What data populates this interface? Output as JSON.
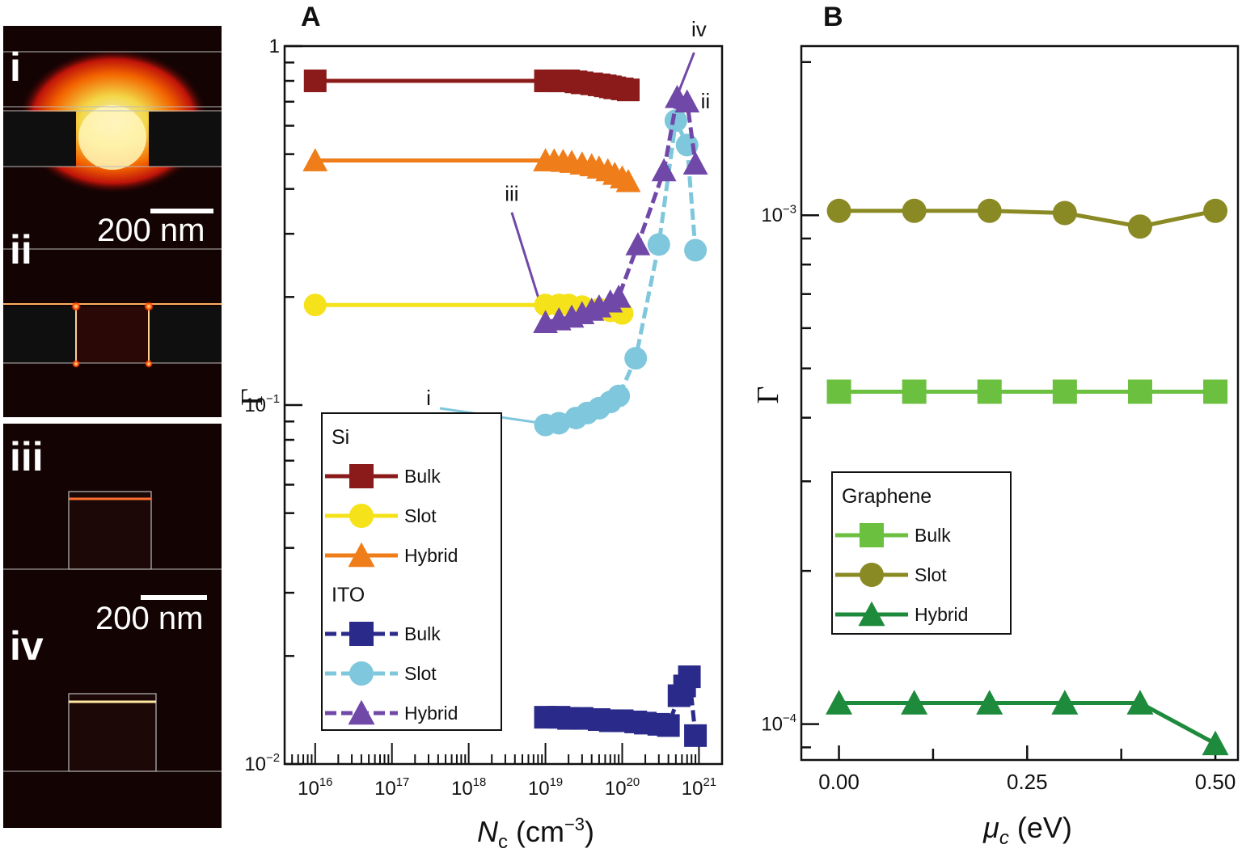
{
  "figure": {
    "panel_images": [
      {
        "label": "i",
        "scale_bar": "200 nm"
      },
      {
        "label": "ii"
      },
      {
        "label": "iii"
      },
      {
        "label": "iv",
        "scale_bar": "200 nm"
      }
    ],
    "colors": {
      "si_bulk": "#8b1a1a",
      "si_slot": "#f5e21a",
      "si_hybrid": "#ef7d1a",
      "ito_bulk": "#2a2a8a",
      "ito_slot": "#7fc7dc",
      "ito_hybrid": "#7048a8",
      "gr_bulk": "#6cc040",
      "gr_slot": "#8a8a24",
      "gr_hybrid": "#1e8a3c"
    }
  },
  "chart_data": [
    {
      "panel": "A",
      "type": "line",
      "xscale": "log",
      "yscale": "log",
      "xlabel_main": "N",
      "xlabel_sub": "c",
      "xlabel_unit": " (cm",
      "xlabel_exp": "−3",
      "xlabel_close": ")",
      "ylabel": "Γ",
      "xlim": [
        4000000000000000.0,
        2e+21
      ],
      "ylim": [
        0.01,
        1
      ],
      "xticks": [
        {
          "base": "10",
          "exp": "16",
          "value": 1e+16
        },
        {
          "base": "10",
          "exp": "17",
          "value": 1e+17
        },
        {
          "base": "10",
          "exp": "18",
          "value": 1e+18
        },
        {
          "base": "10",
          "exp": "19",
          "value": 1e+19
        },
        {
          "base": "10",
          "exp": "20",
          "value": 1e+20
        },
        {
          "base": "10",
          "exp": "21",
          "value": 1e+21
        }
      ],
      "yticks": [
        {
          "base": "1",
          "exp": "",
          "value": 1
        },
        {
          "base": "10",
          "exp": "−1",
          "value": 0.1
        },
        {
          "base": "10",
          "exp": "−2",
          "value": 0.01
        }
      ],
      "legend_groups": [
        {
          "title": "Si",
          "entries": [
            {
              "label": "Bulk",
              "color": "#8b1a1a",
              "marker": "square",
              "dash": false
            },
            {
              "label": "Slot",
              "color": "#f5e21a",
              "marker": "circle",
              "dash": false
            },
            {
              "label": "Hybrid",
              "color": "#ef7d1a",
              "marker": "triangle",
              "dash": false
            }
          ]
        },
        {
          "title": "ITO",
          "entries": [
            {
              "label": "Bulk",
              "color": "#2a2a8a",
              "marker": "square",
              "dash": true
            },
            {
              "label": "Slot",
              "color": "#7fc7dc",
              "marker": "circle",
              "dash": true
            },
            {
              "label": "Hybrid",
              "color": "#7048a8",
              "marker": "triangle",
              "dash": true
            }
          ]
        }
      ],
      "series": [
        {
          "name": "Si Bulk",
          "color": "#8b1a1a",
          "marker": "square",
          "dash": false,
          "x": [
            1e+16,
            1e+19,
            1.2e+19,
            1.5e+19,
            2e+19,
            2.5e+19,
            3e+19,
            4e+19,
            5e+19,
            6e+19,
            7e+19,
            8e+19,
            1e+20,
            1.2e+20
          ],
          "y": [
            0.8,
            0.8,
            0.8,
            0.8,
            0.8,
            0.795,
            0.79,
            0.785,
            0.78,
            0.775,
            0.77,
            0.765,
            0.76,
            0.755
          ]
        },
        {
          "name": "Si Slot",
          "color": "#f5e21a",
          "marker": "circle",
          "dash": false,
          "x": [
            1e+16,
            1e+19,
            1.5e+19,
            2e+19,
            3e+19,
            5e+19,
            7e+19,
            1e+20
          ],
          "y": [
            0.19,
            0.19,
            0.19,
            0.19,
            0.188,
            0.185,
            0.183,
            0.18
          ]
        },
        {
          "name": "Si Hybrid",
          "color": "#ef7d1a",
          "marker": "triangle",
          "dash": false,
          "x": [
            1e+16,
            1e+19,
            1.3e+19,
            1.7e+19,
            2.2e+19,
            3e+19,
            4e+19,
            5e+19,
            6.5e+19,
            8e+19,
            1e+20,
            1.2e+20
          ],
          "y": [
            0.48,
            0.48,
            0.48,
            0.478,
            0.475,
            0.47,
            0.465,
            0.458,
            0.45,
            0.44,
            0.43,
            0.42
          ]
        },
        {
          "name": "ITO Bulk",
          "color": "#2a2a8a",
          "marker": "square",
          "dash": true,
          "x": [
            1e+19,
            1.5e+19,
            2e+19,
            3e+19,
            5e+19,
            7e+19,
            1e+20,
            1.5e+20,
            2e+20,
            3e+20,
            4e+20,
            5.5e+20,
            6.5e+20,
            7.5e+20,
            9e+20
          ],
          "y": [
            0.0135,
            0.0135,
            0.0134,
            0.0134,
            0.0133,
            0.0132,
            0.0132,
            0.0131,
            0.013,
            0.0129,
            0.0128,
            0.0155,
            0.0165,
            0.0175,
            0.012
          ]
        },
        {
          "name": "ITO Slot",
          "color": "#7fc7dc",
          "marker": "circle",
          "dash": true,
          "x": [
            1e+19,
            1.5e+19,
            2.5e+19,
            3.5e+19,
            5e+19,
            7e+19,
            9e+19,
            1.5e+20,
            3e+20,
            5e+20,
            7e+20,
            9e+20
          ],
          "y": [
            0.088,
            0.089,
            0.092,
            0.095,
            0.098,
            0.102,
            0.106,
            0.135,
            0.28,
            0.62,
            0.53,
            0.27
          ]
        },
        {
          "name": "ITO Hybrid",
          "color": "#7048a8",
          "marker": "triangle",
          "dash": true,
          "x": [
            1e+19,
            1.5e+19,
            2.2e+19,
            3e+19,
            4e+19,
            5e+19,
            7e+19,
            9e+19,
            1.6e+20,
            3.5e+20,
            5.2e+20,
            7e+20,
            9e+20
          ],
          "y": [
            0.17,
            0.173,
            0.176,
            0.18,
            0.184,
            0.188,
            0.194,
            0.2,
            0.28,
            0.45,
            0.72,
            0.7,
            0.47
          ]
        }
      ],
      "annotations": [
        {
          "text": "i",
          "x": 3e+17,
          "y": 0.1,
          "point_x": 9e+18,
          "point_y": 0.089
        },
        {
          "text": "ii",
          "x": 1e+21,
          "y": 0.7,
          "point_x": 5e+20,
          "point_y": 0.65
        },
        {
          "text": "iii",
          "x": 3e+18,
          "y": 0.37,
          "point_x": 1e+19,
          "point_y": 0.172
        },
        {
          "text": "iv",
          "x": 1e+21,
          "y": 1.0,
          "point_x": 5.5e+20,
          "point_y": 0.75
        }
      ]
    },
    {
      "panel": "B",
      "type": "line",
      "xscale": "linear",
      "yscale": "log",
      "xlabel_main": "μ",
      "xlabel_sub": "c",
      "xlabel_unit": " (eV)",
      "ylabel": "Γ",
      "xlim": [
        -0.05,
        0.53
      ],
      "ylim": [
        8.5e-05,
        0.00215
      ],
      "xticks": [
        {
          "label": "0.00",
          "value": 0.0
        },
        {
          "label": "0.25",
          "value": 0.25
        },
        {
          "label": "0.50",
          "value": 0.5
        }
      ],
      "yticks": [
        {
          "base": "10",
          "exp": "−3",
          "value": 0.001
        },
        {
          "base": "10",
          "exp": "−4",
          "value": 0.0001
        }
      ],
      "legend_groups": [
        {
          "title": "Graphene",
          "entries": [
            {
              "label": "Bulk",
              "color": "#6cc040",
              "marker": "square",
              "dash": false
            },
            {
              "label": "Slot",
              "color": "#8a8a24",
              "marker": "circle",
              "dash": false
            },
            {
              "label": "Hybrid",
              "color": "#1e8a3c",
              "marker": "triangle",
              "dash": false
            }
          ]
        }
      ],
      "series": [
        {
          "name": "Graphene Bulk",
          "color": "#6cc040",
          "marker": "square",
          "dash": false,
          "x": [
            0.0,
            0.1,
            0.2,
            0.3,
            0.4,
            0.5
          ],
          "y": [
            0.00045,
            0.00045,
            0.00045,
            0.00045,
            0.00045,
            0.00045
          ]
        },
        {
          "name": "Graphene Slot",
          "color": "#8a8a24",
          "marker": "circle",
          "dash": false,
          "x": [
            0.0,
            0.1,
            0.2,
            0.3,
            0.4,
            0.5
          ],
          "y": [
            0.00102,
            0.00102,
            0.00102,
            0.00101,
            0.00095,
            0.00102
          ]
        },
        {
          "name": "Graphene Hybrid",
          "color": "#1e8a3c",
          "marker": "triangle",
          "dash": false,
          "x": [
            0.0,
            0.1,
            0.2,
            0.3,
            0.4,
            0.5
          ],
          "y": [
            0.00011,
            0.00011,
            0.00011,
            0.00011,
            0.00011,
            9.15e-05
          ]
        }
      ]
    }
  ]
}
